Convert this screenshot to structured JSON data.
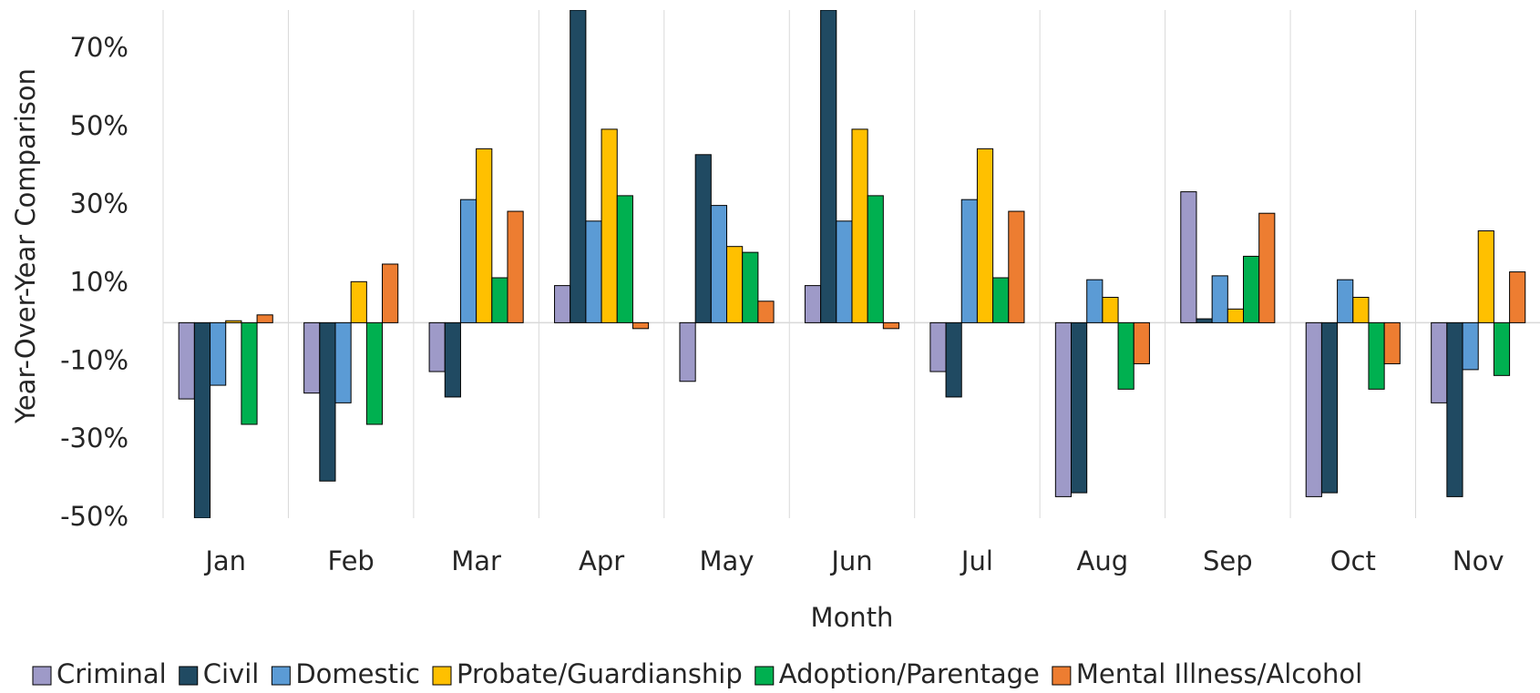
{
  "chart_data": {
    "type": "bar",
    "x_label": "Month",
    "y_label": "Year-Over-Year Comparison",
    "categories": [
      "Jan",
      "Feb",
      "Mar",
      "Apr",
      "May",
      "Jun",
      "Jul",
      "Aug",
      "Sep",
      "Oct",
      "Nov"
    ],
    "series": [
      {
        "name": "Criminal",
        "color": "#9e9ac8",
        "values": [
          -19.5,
          -18,
          -12.5,
          9.5,
          -15,
          9.5,
          -12.5,
          -44.5,
          33.5,
          -44.5,
          -20.5
        ]
      },
      {
        "name": "Civil",
        "color": "#204a62",
        "values": [
          -50,
          -40.5,
          -19,
          80,
          43,
          80,
          -19,
          -43.5,
          1,
          -43.5,
          -44.5
        ]
      },
      {
        "name": "Domestic",
        "color": "#5b9bd5",
        "values": [
          -16,
          -20.5,
          31.5,
          26,
          30,
          26,
          31.5,
          11,
          12,
          11,
          -12
        ]
      },
      {
        "name": "Probate/Guardianship",
        "color": "#ffc000",
        "values": [
          0.5,
          10.5,
          44.5,
          49.5,
          19.5,
          49.5,
          44.5,
          6.5,
          3.5,
          6.5,
          23.5
        ]
      },
      {
        "name": "Adoption/Parentage",
        "color": "#00b050",
        "values": [
          -26,
          -26,
          11.5,
          32.5,
          18,
          32.5,
          11.5,
          -17,
          17,
          -17,
          -13.5
        ]
      },
      {
        "name": "Mental Illness/Alcohol",
        "color": "#ed7d31",
        "values": [
          2,
          15,
          28.5,
          -1.5,
          5.5,
          -1.5,
          28.5,
          -10.5,
          28,
          -10.5,
          13
        ]
      }
    ],
    "ylim": [
      -50,
      80
    ],
    "yticks": [
      {
        "value": -50,
        "label": "-50%"
      },
      {
        "value": -30,
        "label": "-30%"
      },
      {
        "value": -10,
        "label": "-10%"
      },
      {
        "value": 10,
        "label": "10%"
      },
      {
        "value": 30,
        "label": "30%"
      },
      {
        "value": 50,
        "label": "50%"
      },
      {
        "value": 70,
        "label": "70%"
      }
    ],
    "grid": true,
    "legend": "bottom"
  }
}
